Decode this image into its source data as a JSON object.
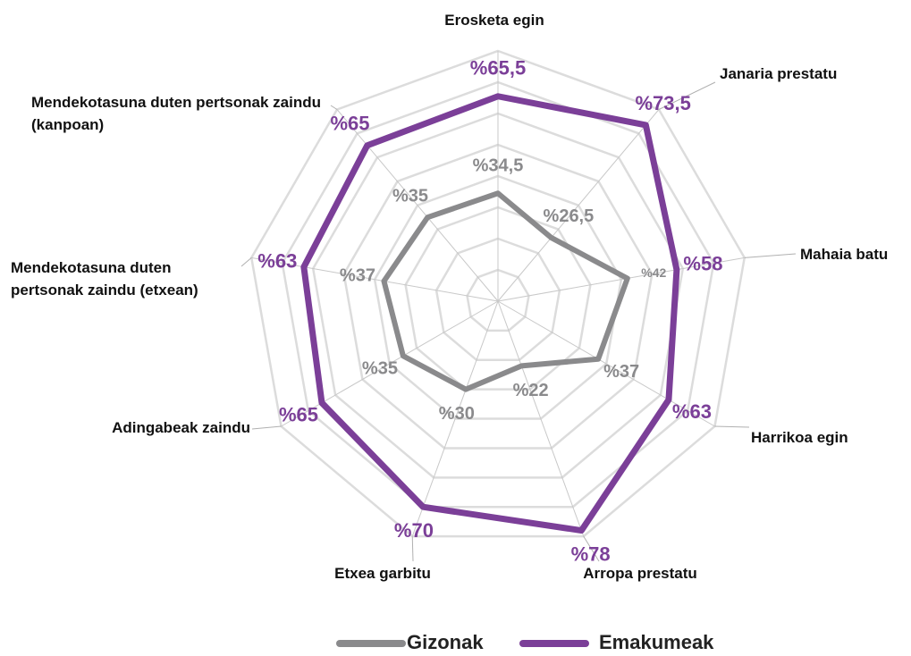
{
  "chart_data": {
    "type": "radar",
    "categories": [
      "Erosketa egin",
      "Janaria prestatu",
      "Mahaia batu",
      "Harrikoa egin",
      "Arropa prestatu",
      "Etxea garbitu",
      "Adingabeak zaindu",
      "Mendekotasuna duten pertsonak zaindu (etxean)",
      "Mendekotasuna duten pertsonak zaindu (kanpoan)"
    ],
    "series": [
      {
        "name": "Gizonak",
        "color": "#8a8a8c",
        "values": [
          34.5,
          26.5,
          42,
          37,
          22,
          30,
          35,
          37,
          35
        ],
        "value_labels": [
          "%34,5",
          "%26,5",
          "%42",
          "%37",
          "%22",
          "%30",
          "%35",
          "%37",
          "%35"
        ]
      },
      {
        "name": "Emakumeak",
        "color": "#7b3f98",
        "values": [
          65.5,
          73.5,
          58,
          63,
          78,
          70,
          65,
          63,
          65
        ],
        "value_labels": [
          "%65,5",
          "%73,5",
          "%58",
          "%63",
          "%78",
          "%70",
          "%65",
          "%63",
          "%65"
        ]
      }
    ],
    "ylim": [
      0,
      80
    ],
    "yticks": [
      10,
      20,
      30,
      40,
      50,
      60,
      70,
      80
    ],
    "grid": true
  }
}
